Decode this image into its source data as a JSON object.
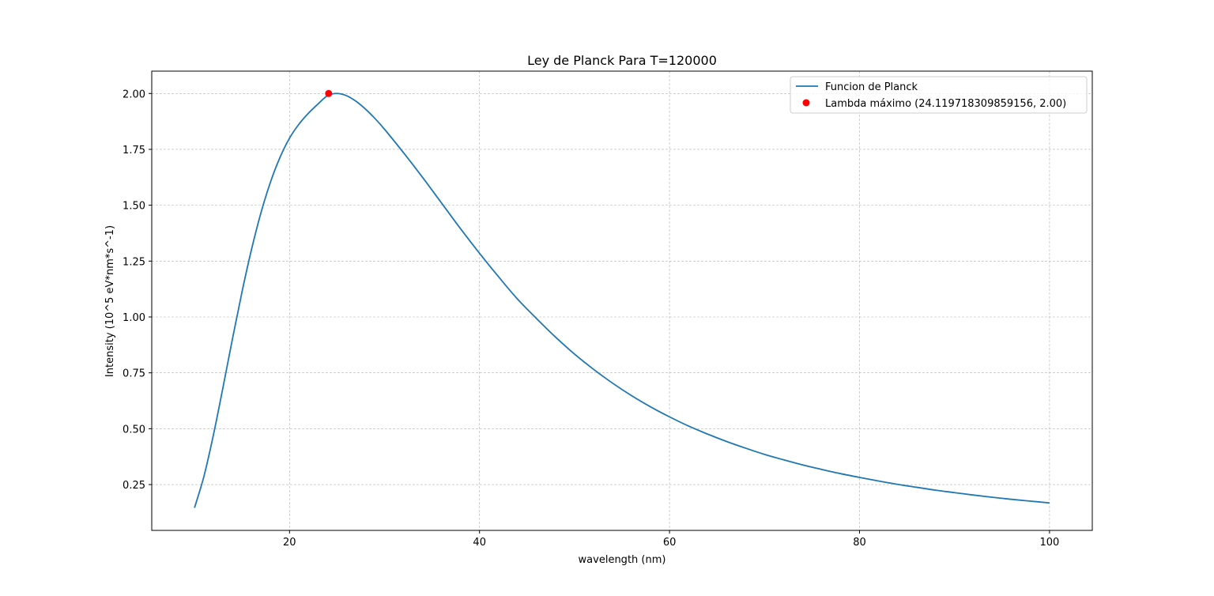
{
  "chart_data": {
    "type": "line",
    "title": "Ley de Planck Para T=120000",
    "xlabel": "wavelength (nm)",
    "ylabel": "Intensity (10^5 eV*nm*s^-1)",
    "xlim": [
      5.5,
      104.5
    ],
    "ylim": [
      0.045,
      2.1
    ],
    "x_ticks": [
      20,
      40,
      60,
      80,
      100
    ],
    "y_ticks": [
      0.25,
      0.5,
      0.75,
      1.0,
      1.25,
      1.5,
      1.75,
      2.0
    ],
    "x_tick_labels": [
      "20",
      "40",
      "60",
      "80",
      "100"
    ],
    "y_tick_labels": [
      "0.25",
      "0.50",
      "0.75",
      "1.00",
      "1.25",
      "1.50",
      "1.75",
      "2.00"
    ],
    "grid": true,
    "legend_position": "top-right",
    "series": [
      {
        "name": "Funcion de Planck",
        "color": "#1f77b4",
        "x": [
          10,
          11,
          12,
          13,
          14,
          15,
          16,
          17,
          18,
          19,
          20,
          21,
          22,
          23,
          24,
          25,
          26,
          27,
          28,
          29,
          30,
          32,
          34,
          36,
          38,
          40,
          42,
          44,
          46,
          48,
          50,
          52,
          54,
          56,
          58,
          60,
          62,
          64,
          66,
          68,
          70,
          72,
          74,
          76,
          78,
          80,
          82,
          84,
          86,
          88,
          90,
          92,
          94,
          96,
          98,
          100
        ],
        "y": [
          0.146,
          0.288,
          0.474,
          0.685,
          0.903,
          1.112,
          1.302,
          1.467,
          1.604,
          1.714,
          1.8,
          1.863,
          1.912,
          1.953,
          1.99,
          2.0,
          1.99,
          1.965,
          1.93,
          1.888,
          1.84,
          1.735,
          1.625,
          1.51,
          1.395,
          1.285,
          1.18,
          1.08,
          0.993,
          0.91,
          0.834,
          0.766,
          0.704,
          0.648,
          0.598,
          0.553,
          0.512,
          0.476,
          0.443,
          0.413,
          0.385,
          0.361,
          0.338,
          0.318,
          0.299,
          0.282,
          0.266,
          0.251,
          0.238,
          0.225,
          0.214,
          0.203,
          0.193,
          0.184,
          0.176,
          0.168
        ]
      },
      {
        "name": "Lambda máximo (24.119718309859156, 2.00)",
        "color": "#ff0000",
        "marker": "circle",
        "x": [
          24.119718309859156
        ],
        "y": [
          2.0
        ]
      }
    ]
  }
}
